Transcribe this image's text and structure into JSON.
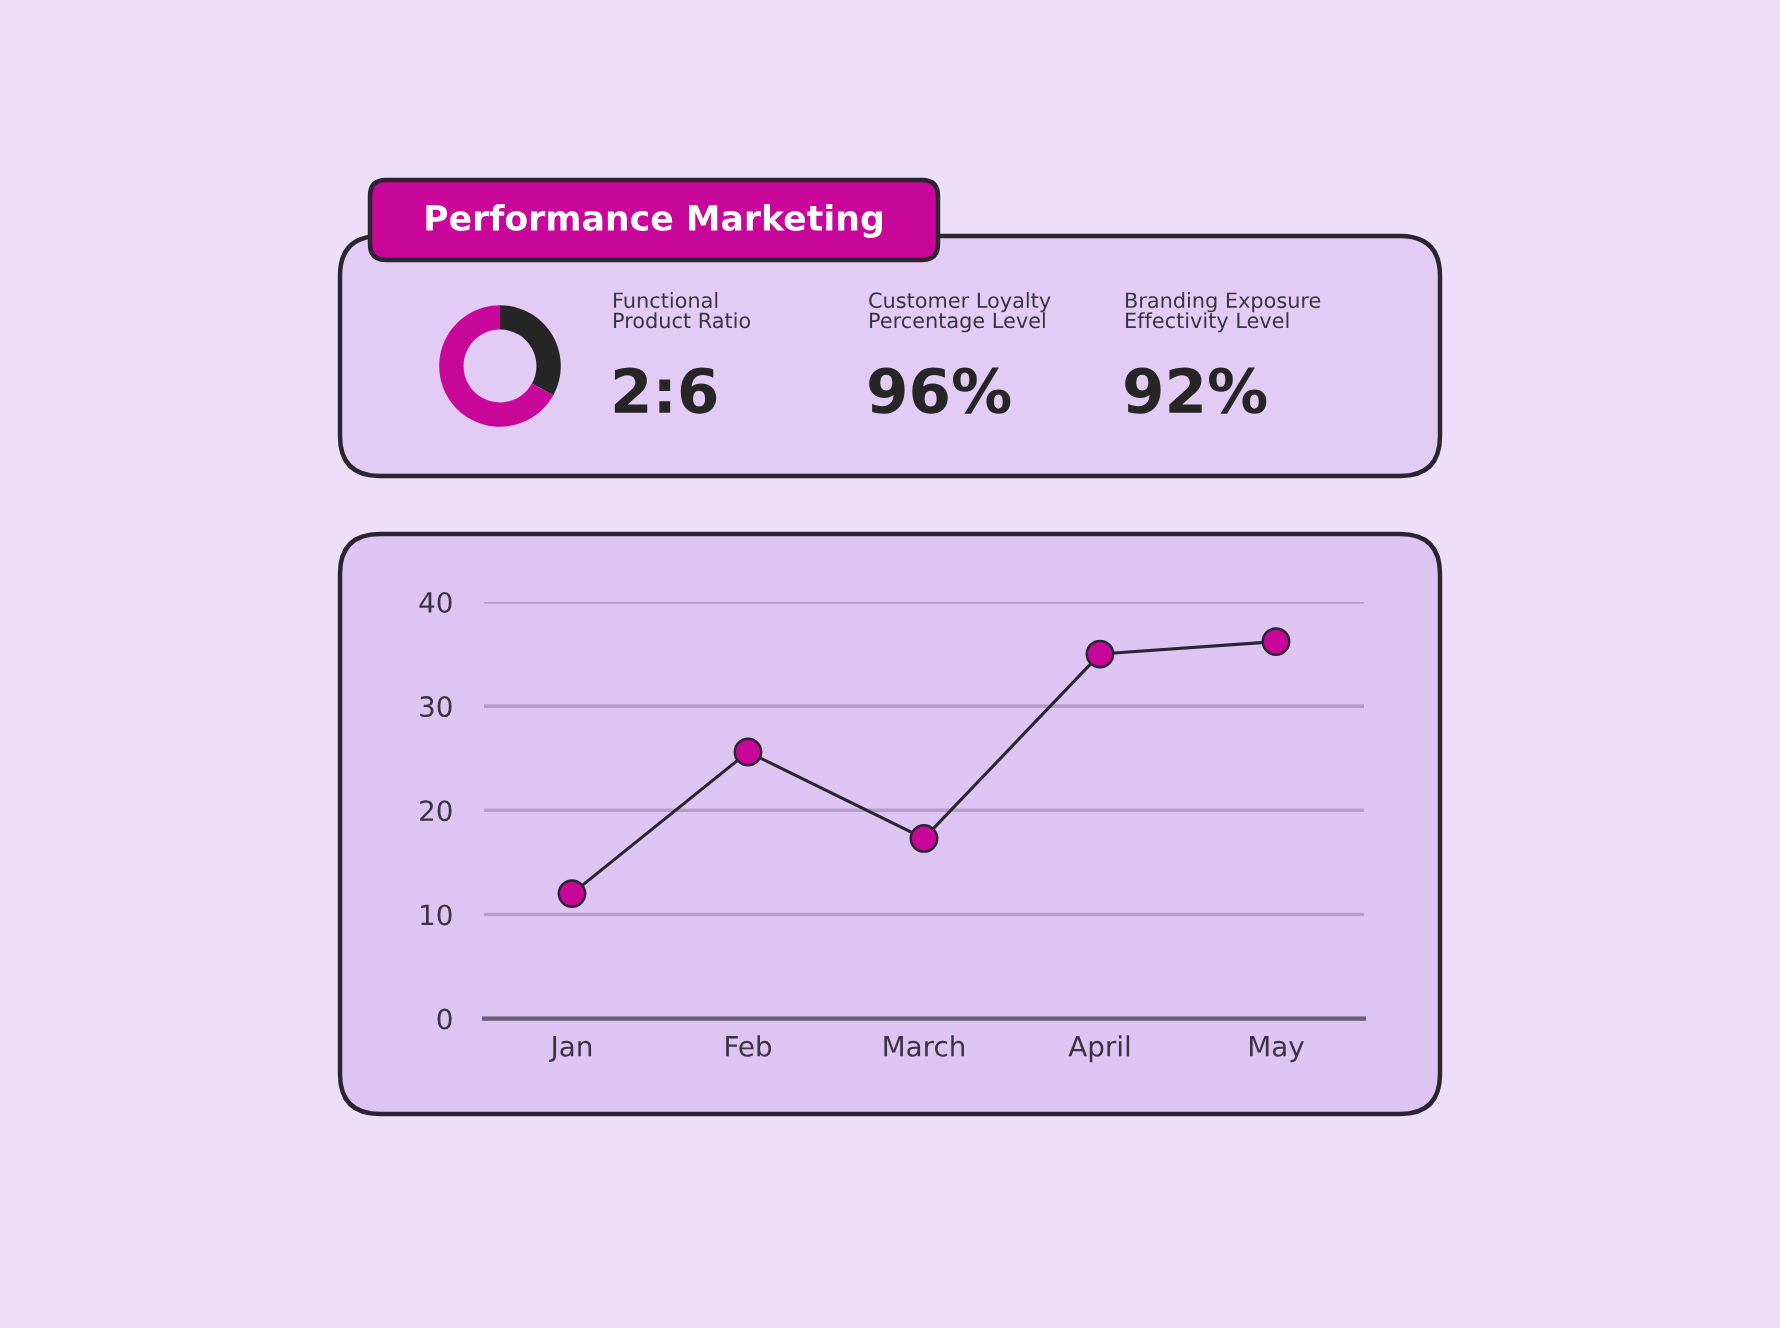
{
  "chart_data": [
    {
      "type": "donut",
      "title": "Performance Marketing",
      "categories": [
        null,
        null
      ],
      "values": [
        33,
        67
      ],
      "colors": [
        "#262626",
        "#c8079a"
      ]
    },
    {
      "type": "other",
      "annotations": [
        "Functional Product Ratio",
        "2:6",
        "Customer Loyalty Percentage Level",
        "96%",
        "Branding Exposure Effectivity Level",
        "92%"
      ]
    },
    {
      "type": "line",
      "categories": [
        "Jan",
        "Feb",
        "March",
        "April",
        "May"
      ],
      "series": [
        {
          "color": "#c8079a",
          "values": [
            12,
            25.6,
            17.3,
            35,
            36.2
          ]
        }
      ],
      "ylim": [
        0,
        40
      ],
      "yticks": [
        0,
        10,
        20,
        30,
        40
      ],
      "grid": "y",
      "marker": "circle",
      "line_style": "solid"
    }
  ]
}
